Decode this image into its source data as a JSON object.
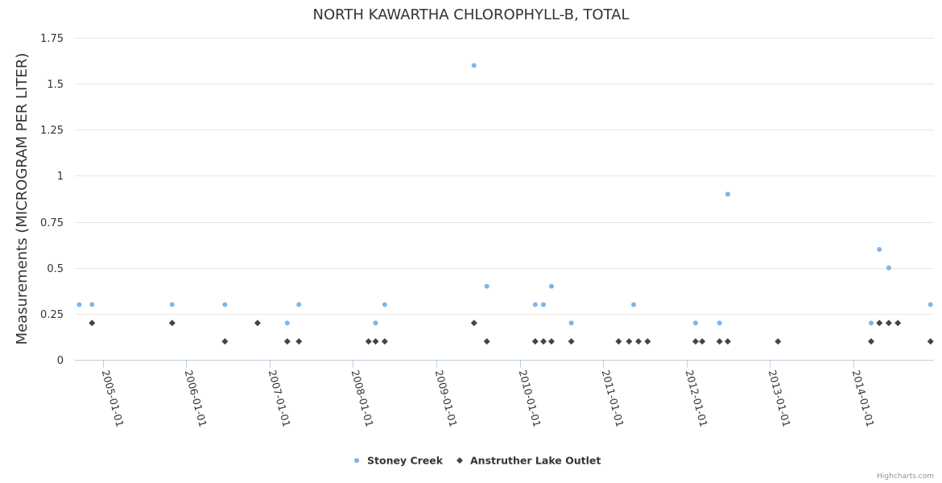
{
  "chart_data": {
    "type": "scatter",
    "title": "NORTH KAWARTHA CHLOROPHYLL-B, TOTAL",
    "ylabel": "Measurements (MICROGRAM PER LITER)",
    "xlabel": "",
    "ylim": [
      0,
      1.75
    ],
    "yticks": [
      0,
      0.25,
      0.5,
      0.75,
      1,
      1.25,
      1.5,
      1.75
    ],
    "ytick_labels": [
      "0",
      "0.25",
      "0.5",
      "0.75",
      "1",
      "1.25",
      "1.5",
      "1.75"
    ],
    "xlim": [
      "2004-09-01",
      "2014-12-20"
    ],
    "xticks": [
      "2005-01-01",
      "2006-01-01",
      "2007-01-01",
      "2008-01-01",
      "2009-01-01",
      "2010-01-01",
      "2011-01-01",
      "2012-01-01",
      "2013-01-01",
      "2014-01-01"
    ],
    "grid": true,
    "legend_position": "bottom-center",
    "series": [
      {
        "name": "Stoney Creek",
        "color": "#7cb5ec",
        "marker": "circle",
        "points": [
          [
            "2004-09-20",
            0.3
          ],
          [
            "2004-11-15",
            0.3
          ],
          [
            "2005-11-01",
            0.3
          ],
          [
            "2006-06-20",
            0.3
          ],
          [
            "2007-03-20",
            0.2
          ],
          [
            "2007-05-10",
            0.3
          ],
          [
            "2008-04-10",
            0.2
          ],
          [
            "2008-05-20",
            0.3
          ],
          [
            "2009-06-15",
            1.6
          ],
          [
            "2009-08-10",
            0.4
          ],
          [
            "2010-03-10",
            0.3
          ],
          [
            "2010-04-15",
            0.3
          ],
          [
            "2010-05-20",
            0.4
          ],
          [
            "2010-08-15",
            0.2
          ],
          [
            "2011-05-15",
            0.3
          ],
          [
            "2012-02-10",
            0.2
          ],
          [
            "2012-05-25",
            0.2
          ],
          [
            "2012-06-30",
            0.9
          ],
          [
            "2014-03-20",
            0.2
          ],
          [
            "2014-04-25",
            0.6
          ],
          [
            "2014-06-05",
            0.5
          ],
          [
            "2014-12-05",
            0.3
          ]
        ]
      },
      {
        "name": "Anstruther Lake Outlet",
        "color": "#434348",
        "marker": "diamond",
        "points": [
          [
            "2004-11-15",
            0.2
          ],
          [
            "2005-11-01",
            0.2
          ],
          [
            "2006-06-20",
            0.1
          ],
          [
            "2006-11-10",
            0.2
          ],
          [
            "2007-03-20",
            0.1
          ],
          [
            "2007-05-10",
            0.1
          ],
          [
            "2008-03-10",
            0.1
          ],
          [
            "2008-04-10",
            0.1
          ],
          [
            "2008-05-20",
            0.1
          ],
          [
            "2009-06-15",
            0.2
          ],
          [
            "2009-08-10",
            0.1
          ],
          [
            "2010-03-10",
            0.1
          ],
          [
            "2010-04-15",
            0.1
          ],
          [
            "2010-05-20",
            0.1
          ],
          [
            "2010-08-15",
            0.1
          ],
          [
            "2011-03-10",
            0.1
          ],
          [
            "2011-04-25",
            0.1
          ],
          [
            "2011-06-05",
            0.1
          ],
          [
            "2011-07-15",
            0.1
          ],
          [
            "2012-02-10",
            0.1
          ],
          [
            "2012-03-10",
            0.1
          ],
          [
            "2012-05-25",
            0.1
          ],
          [
            "2012-06-30",
            0.1
          ],
          [
            "2013-02-05",
            0.1
          ],
          [
            "2014-03-20",
            0.1
          ],
          [
            "2014-04-25",
            0.2
          ],
          [
            "2014-06-05",
            0.2
          ],
          [
            "2014-07-15",
            0.2
          ],
          [
            "2014-12-05",
            0.1
          ]
        ]
      }
    ],
    "credits": "Highcharts.com"
  }
}
